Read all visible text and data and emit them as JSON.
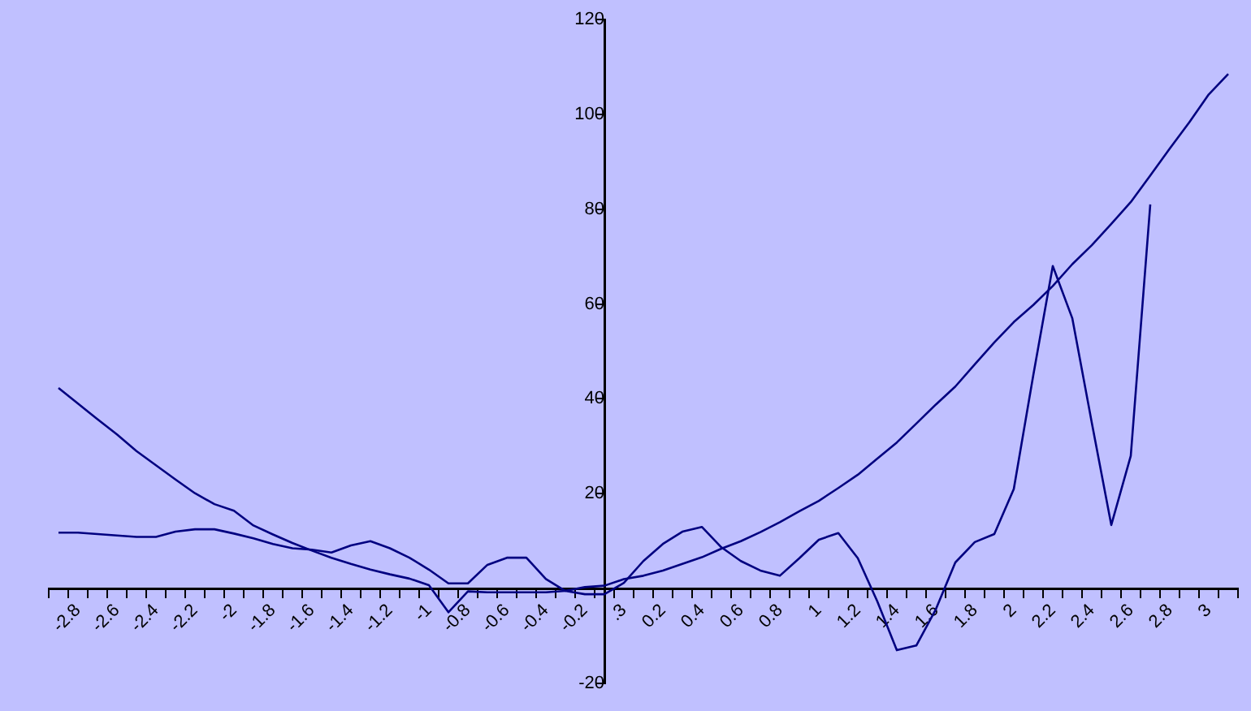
{
  "chart_data": {
    "type": "line",
    "categories": [
      null,
      "-2.8",
      null,
      "-2.6",
      null,
      "-2.4",
      null,
      "-2.2",
      null,
      "-2",
      null,
      "-1.8",
      null,
      "-1.6",
      null,
      "-1.4",
      null,
      "-1.2",
      null,
      "-1",
      null,
      "-0.8",
      null,
      "-0.6",
      null,
      "-0.4",
      null,
      "-0.2",
      null,
      ".3",
      null,
      "0.2",
      null,
      "0.4",
      null,
      "0.6",
      null,
      "0.8",
      null,
      "1",
      null,
      "1.2",
      null,
      "1.4",
      null,
      "1.6",
      null,
      "1.8",
      null,
      "2",
      null,
      "2.2",
      null,
      "2.4",
      null,
      "2.6",
      null,
      "2.8",
      null,
      "3",
      null
    ],
    "series": [
      {
        "color": "#000080",
        "values": [
          42.3,
          39,
          35.7,
          32.5,
          29,
          26,
          23,
          20.1,
          17.8,
          16.4,
          13.3,
          11.4,
          9.6,
          8,
          6.5,
          5.2,
          4,
          3,
          2.1,
          0.7,
          -5,
          -0.6,
          -0.8,
          -0.8,
          -0.8,
          -0.8,
          -0.5,
          0.3,
          0.6,
          2,
          2.7,
          3.8,
          5.2,
          6.6,
          8.4,
          10,
          11.9,
          14,
          16.3,
          18.5,
          21.2,
          24,
          27.4,
          30.8,
          34.8,
          38.8,
          42.6,
          47.3,
          51.9,
          56.2,
          59.8,
          63.8,
          68.4,
          72.4,
          76.9,
          81.5,
          87.1,
          92.8,
          98.3,
          104.2,
          108.5
        ]
      },
      {
        "color": "#000080",
        "values": [
          11.8,
          11.8,
          11.5,
          11.2,
          10.9,
          10.9,
          12,
          12.5,
          12.5,
          11.6,
          10.6,
          9.4,
          8.5,
          8.2,
          7.6,
          9.1,
          10,
          8.5,
          6.5,
          4,
          1.1,
          1.1,
          5,
          6.5,
          6.5,
          2,
          -0.5,
          -1.2,
          -1.2,
          1.2,
          5.8,
          9.4,
          12,
          13,
          8.7,
          5.8,
          3.8,
          2.7,
          6.4,
          10.3,
          11.7,
          6.4,
          -2.7,
          -13,
          -12,
          -4.4,
          5.5,
          9.8,
          11.5,
          21,
          45,
          68,
          57,
          35,
          13.4,
          28,
          81,
          null,
          null,
          null,
          null
        ]
      }
    ],
    "ylim": [
      -20,
      120
    ],
    "yticks": [
      -20,
      {
        "value": 0,
        "label": null
      },
      20,
      40,
      60,
      80,
      100,
      120
    ],
    "grid": false,
    "legend": false
  }
}
